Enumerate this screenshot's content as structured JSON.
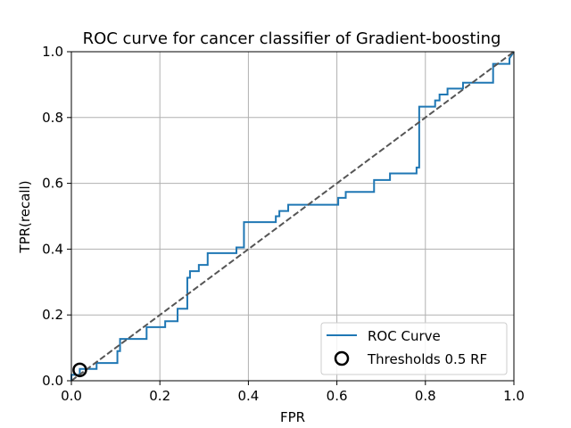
{
  "chart_data": {
    "type": "line",
    "title": "ROC curve for cancer classifier of Gradient-boosting",
    "xlabel": "FPR",
    "ylabel": "TPR(recall)",
    "xlim": [
      0.0,
      1.0
    ],
    "ylim": [
      0.0,
      1.0
    ],
    "xticks": [
      "0.0",
      "0.2",
      "0.4",
      "0.6",
      "0.8",
      "1.0"
    ],
    "yticks": [
      "0.0",
      "0.2",
      "0.4",
      "0.6",
      "0.8",
      "1.0"
    ],
    "grid": true,
    "legend_position": "lower-right",
    "legend": [
      "ROC Curve",
      "Thresholds 0.5 RF"
    ],
    "colors": {
      "roc": "#1f77b4",
      "diagonal": "#555555",
      "marker": "#000000",
      "grid": "#b0b0b0"
    },
    "series": [
      {
        "name": "ROC Curve",
        "style": "step",
        "x": [
          0.0,
          0.0,
          0.019,
          0.019,
          0.057,
          0.057,
          0.104,
          0.104,
          0.11,
          0.11,
          0.17,
          0.17,
          0.212,
          0.212,
          0.24,
          0.24,
          0.262,
          0.262,
          0.268,
          0.268,
          0.288,
          0.288,
          0.308,
          0.308,
          0.373,
          0.373,
          0.39,
          0.39,
          0.462,
          0.462,
          0.47,
          0.47,
          0.49,
          0.49,
          0.603,
          0.603,
          0.62,
          0.62,
          0.684,
          0.684,
          0.72,
          0.72,
          0.78,
          0.78,
          0.786,
          0.786,
          0.822,
          0.822,
          0.832,
          0.832,
          0.85,
          0.85,
          0.885,
          0.885,
          0.953,
          0.953,
          0.99,
          0.99,
          1.0
        ],
        "y": [
          0.0,
          0.018,
          0.018,
          0.036,
          0.036,
          0.054,
          0.054,
          0.09,
          0.09,
          0.127,
          0.127,
          0.163,
          0.163,
          0.181,
          0.181,
          0.219,
          0.219,
          0.313,
          0.313,
          0.333,
          0.333,
          0.352,
          0.352,
          0.388,
          0.388,
          0.405,
          0.405,
          0.482,
          0.482,
          0.5,
          0.5,
          0.516,
          0.516,
          0.535,
          0.535,
          0.556,
          0.556,
          0.574,
          0.574,
          0.61,
          0.61,
          0.63,
          0.63,
          0.648,
          0.648,
          0.833,
          0.833,
          0.852,
          0.852,
          0.87,
          0.87,
          0.888,
          0.888,
          0.906,
          0.906,
          0.963,
          0.963,
          0.98,
          1.0
        ]
      },
      {
        "name": "diagonal",
        "style": "dashed",
        "x": [
          0.0,
          1.0
        ],
        "y": [
          0.0,
          1.0
        ]
      }
    ],
    "markers": [
      {
        "name": "Thresholds 0.5 RF",
        "x": 0.019,
        "y": 0.033,
        "shape": "circle-open"
      }
    ]
  }
}
